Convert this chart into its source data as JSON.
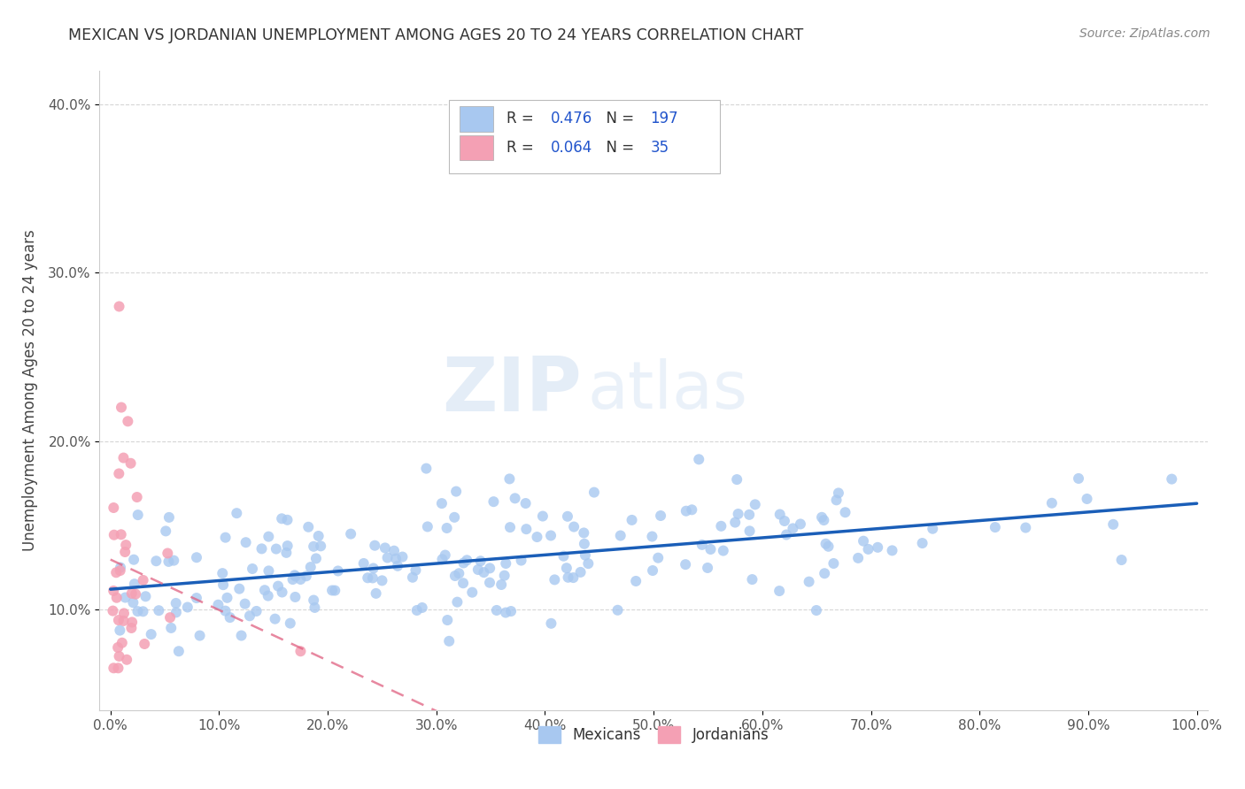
{
  "title": "MEXICAN VS JORDANIAN UNEMPLOYMENT AMONG AGES 20 TO 24 YEARS CORRELATION CHART",
  "source": "Source: ZipAtlas.com",
  "ylabel": "Unemployment Among Ages 20 to 24 years",
  "xlabel": "",
  "xlim": [
    -0.01,
    1.01
  ],
  "ylim": [
    0.04,
    0.42
  ],
  "xticks": [
    0.0,
    0.1,
    0.2,
    0.3,
    0.4,
    0.5,
    0.6,
    0.7,
    0.8,
    0.9,
    1.0
  ],
  "xticklabels": [
    "0.0%",
    "10.0%",
    "20.0%",
    "30.0%",
    "40.0%",
    "50.0%",
    "60.0%",
    "70.0%",
    "80.0%",
    "90.0%",
    "100.0%"
  ],
  "yticks": [
    0.1,
    0.2,
    0.3,
    0.4
  ],
  "yticklabels": [
    "10.0%",
    "20.0%",
    "30.0%",
    "40.0%"
  ],
  "mexican_color": "#a8c8f0",
  "jordanian_color": "#f4a0b4",
  "mexican_line_color": "#1a5eb8",
  "jordanian_line_color": "#e06080",
  "mexican_R": 0.476,
  "mexican_N": 197,
  "jordanian_R": 0.064,
  "jordanian_N": 35,
  "background_color": "#ffffff",
  "grid_color": "#cccccc",
  "legend_text_color": "#2255cc",
  "legend_n_color": "#cc2200",
  "title_color": "#333333",
  "source_color": "#888888"
}
